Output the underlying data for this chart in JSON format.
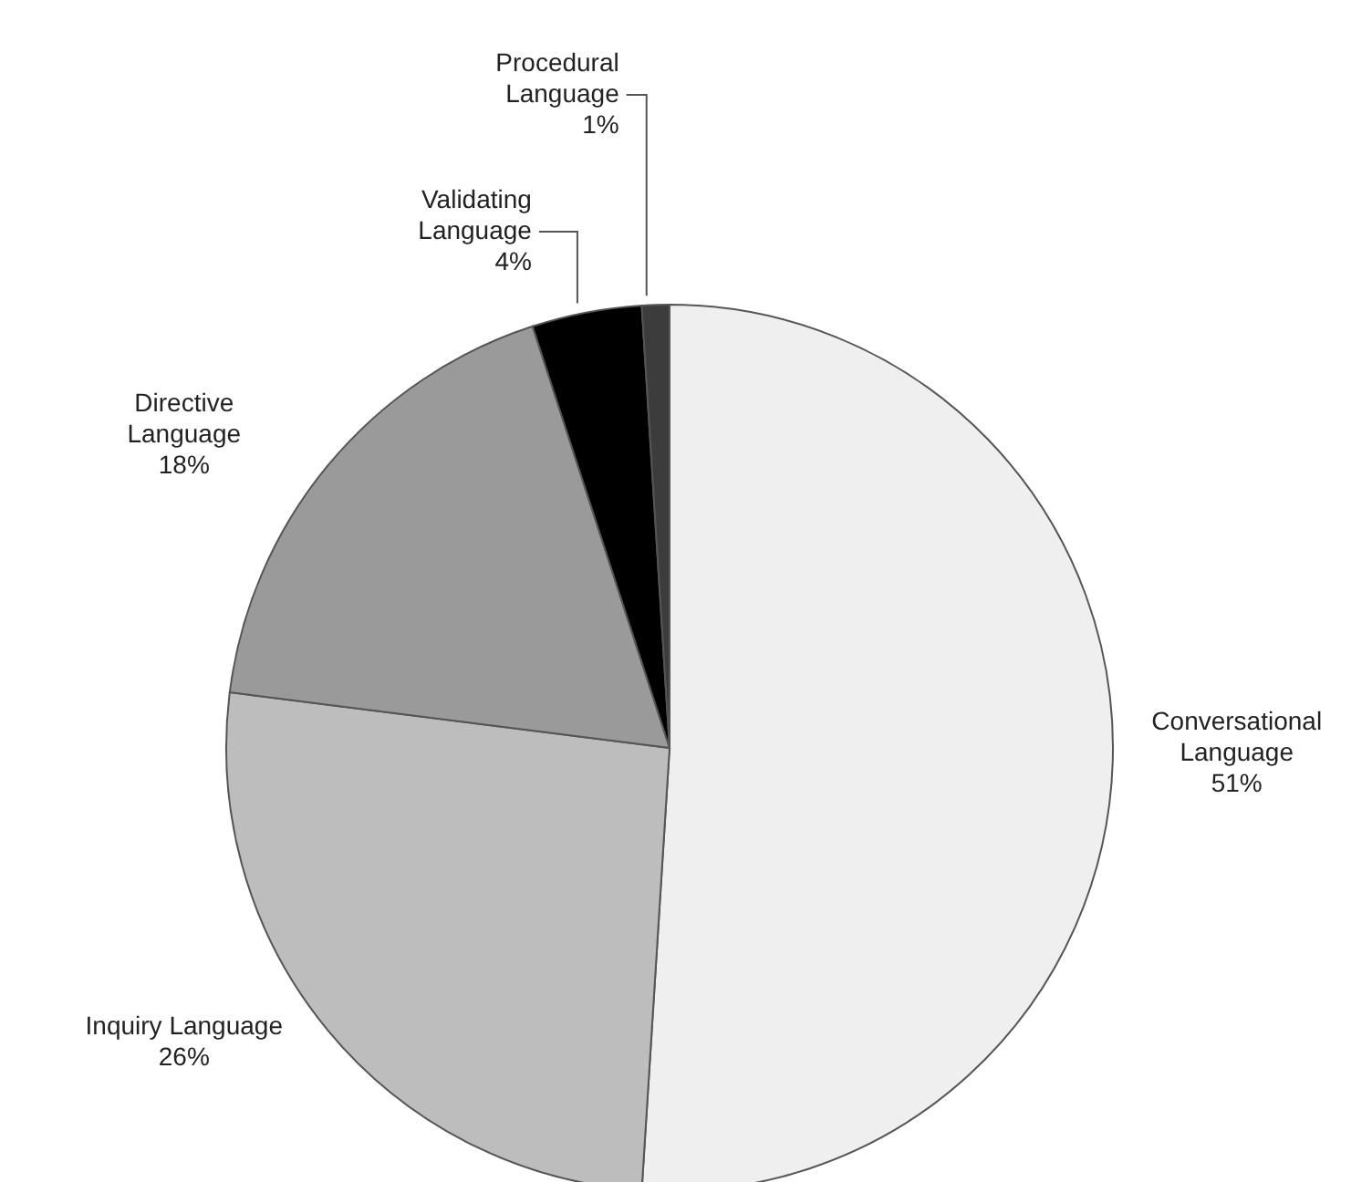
{
  "chart_data": {
    "type": "pie",
    "categories": [
      "Conversational Language",
      "Inquiry Language",
      "Directive Language",
      "Validating Language",
      "Procedural Language"
    ],
    "values": [
      51,
      26,
      18,
      4,
      1
    ],
    "value_labels": [
      "51%",
      "26%",
      "18%",
      "4%",
      "1%"
    ],
    "colors": [
      "#efefef",
      "#bdbdbd",
      "#9a9a9a",
      "#000000",
      "#3c3c3c"
    ],
    "legend": false
  }
}
